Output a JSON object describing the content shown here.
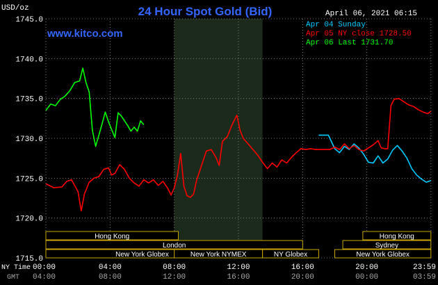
{
  "title": "24 Hour Spot Gold (Bid)",
  "unit_label": "USD/oz",
  "site": "www.kitco.com",
  "timestamp": "April 06, 2021 06:15",
  "legend": [
    {
      "text": "Apr 04 Sunday",
      "color": "#00ccff"
    },
    {
      "text": "Apr 05 NY close 1728.50",
      "color": "#ff0000"
    },
    {
      "text": "Apr 06 Last 1731.70",
      "color": "#00ff00"
    }
  ],
  "time_labels": {
    "ny_caption": "NY Time",
    "gmt_caption": "GMT",
    "ny": [
      "00:00",
      "04:00",
      "08:00",
      "12:00",
      "16:00",
      "20:00",
      "23:59"
    ],
    "gmt": [
      "04:00",
      "08:00",
      "12:00",
      "16:00",
      "20:00",
      "00:00",
      "03:59"
    ]
  },
  "markets": [
    {
      "name": "Hong Kong",
      "start": 0.0,
      "end": 8.25,
      "row": 0
    },
    {
      "name": "London",
      "start": 0.0,
      "end": 16.0,
      "row": 1
    },
    {
      "name": "New York Globex",
      "start": 0.0,
      "end": 12.0,
      "row": 2
    },
    {
      "name": "New York NYMEX",
      "start": 8.0,
      "end": 13.5,
      "row": 2
    },
    {
      "name": "NY Globex",
      "start": 13.5,
      "end": 17.0,
      "row": 2
    },
    {
      "name": "Hong Kong",
      "start": 19.75,
      "end": 23.99,
      "row": 0
    },
    {
      "name": "Sydney",
      "start": 18.5,
      "end": 23.99,
      "row": 1
    },
    {
      "name": "New York Globex",
      "start": 18.0,
      "end": 23.99,
      "row": 2
    }
  ],
  "colors": {
    "background": "#000000",
    "title": "#3366ff",
    "site": "#3366ff",
    "text": "#ffffff",
    "grid": "#7f7f7f",
    "nymex_shade": "#1b2a1b",
    "market_bar": "#000000",
    "market_border": "#c8a800",
    "market_text": "#ffffff",
    "time_gmt": "#a8a8a8"
  },
  "chart_data": {
    "type": "line",
    "title": "24 Hour Spot Gold (Bid)",
    "xlabel": "",
    "ylabel": "USD/oz",
    "xlim": [
      0,
      24
    ],
    "ylim": [
      1715,
      1745
    ],
    "yticks": [
      1715,
      1720,
      1725,
      1730,
      1735,
      1740,
      1745
    ],
    "ytick_labels": [
      "1715.0",
      "1720.0",
      "1725.0",
      "1730.0",
      "1735.0",
      "1740.0",
      "1745.0"
    ],
    "xticks": [
      0,
      4,
      8,
      12,
      16,
      20,
      23.99
    ],
    "grid": true,
    "legend_position": "top-right",
    "x_unit": "hours after 00:00 NY time",
    "shaded_region": [
      8.0,
      13.5
    ],
    "series": [
      {
        "name": "Apr 04 Sunday",
        "color": "#00ccff",
        "x": [
          17.0,
          17.6,
          18.0,
          18.3,
          18.6,
          18.9,
          19.2,
          19.5,
          19.8,
          20.1,
          20.4,
          20.7,
          21.0,
          21.3,
          21.6,
          21.9,
          22.2,
          22.5,
          22.8,
          23.1,
          23.4,
          23.7,
          23.99
        ],
        "y": [
          1730.4,
          1730.4,
          1728.7,
          1728.2,
          1729.0,
          1728.6,
          1729.3,
          1728.8,
          1728.0,
          1727.0,
          1726.9,
          1727.8,
          1726.9,
          1727.4,
          1728.5,
          1729.1,
          1728.4,
          1727.5,
          1726.2,
          1725.4,
          1724.9,
          1724.5,
          1724.7
        ]
      },
      {
        "name": "Apr 05 NY close 1728.50",
        "color": "#ff0000",
        "x": [
          0.0,
          0.5,
          1.0,
          1.3,
          1.6,
          2.0,
          2.2,
          2.4,
          2.7,
          3.0,
          3.3,
          3.6,
          3.9,
          4.1,
          4.3,
          4.6,
          4.9,
          5.2,
          5.5,
          5.8,
          6.1,
          6.4,
          6.7,
          7.0,
          7.3,
          7.6,
          7.8,
          8.0,
          8.2,
          8.4,
          8.6,
          8.8,
          9.0,
          9.2,
          9.4,
          9.7,
          10.0,
          10.3,
          10.6,
          10.8,
          11.0,
          11.3,
          11.6,
          11.9,
          12.1,
          12.3,
          12.6,
          12.9,
          13.2,
          13.5,
          13.8,
          14.1,
          14.4,
          14.7,
          15.0,
          15.3,
          15.6,
          15.9,
          16.2,
          16.5,
          16.8,
          17.1,
          17.4,
          17.7,
          18.0,
          18.3,
          18.6,
          18.9,
          19.2,
          19.5,
          19.8,
          20.1,
          20.4,
          20.7,
          20.9,
          21.1,
          21.3,
          21.5,
          21.7,
          22.0,
          22.3,
          22.6,
          22.9,
          23.2,
          23.5,
          23.8,
          23.99
        ],
        "y": [
          1724.3,
          1723.8,
          1723.9,
          1724.6,
          1724.8,
          1723.3,
          1720.9,
          1723.0,
          1724.5,
          1725.0,
          1725.2,
          1726.1,
          1726.3,
          1725.4,
          1725.6,
          1726.7,
          1726.1,
          1725.0,
          1724.4,
          1724.0,
          1724.8,
          1724.4,
          1724.8,
          1724.1,
          1724.6,
          1723.7,
          1722.9,
          1723.8,
          1725.4,
          1728.1,
          1724.0,
          1722.8,
          1722.6,
          1723.0,
          1724.8,
          1726.6,
          1728.4,
          1728.6,
          1727.6,
          1726.6,
          1729.6,
          1730.2,
          1731.7,
          1732.9,
          1731.0,
          1730.0,
          1729.3,
          1728.6,
          1727.9,
          1727.0,
          1726.2,
          1726.9,
          1726.4,
          1727.3,
          1726.9,
          1727.6,
          1728.2,
          1728.7,
          1728.6,
          1728.7,
          1728.6,
          1728.6,
          1728.6,
          1728.6,
          1728.9,
          1728.6,
          1729.3,
          1728.7,
          1729.1,
          1728.6,
          1728.4,
          1728.8,
          1729.2,
          1729.7,
          1728.8,
          1728.7,
          1728.7,
          1734.1,
          1734.9,
          1735.0,
          1734.6,
          1734.2,
          1734.0,
          1733.6,
          1733.3,
          1733.1,
          1733.4
        ]
      },
      {
        "name": "Apr 06 Last 1731.70",
        "color": "#00ff00",
        "x": [
          0.0,
          0.3,
          0.6,
          0.9,
          1.2,
          1.5,
          1.8,
          2.1,
          2.3,
          2.5,
          2.7,
          2.9,
          3.1,
          3.3,
          3.5,
          3.7,
          3.9,
          4.1,
          4.3,
          4.5,
          4.7,
          4.9,
          5.1,
          5.3,
          5.5,
          5.7,
          5.9,
          6.1
        ],
        "y": [
          1733.5,
          1734.3,
          1734.1,
          1734.9,
          1735.3,
          1736.0,
          1737.0,
          1737.2,
          1738.8,
          1737.0,
          1735.8,
          1731.0,
          1729.0,
          1730.4,
          1731.8,
          1733.3,
          1732.1,
          1731.1,
          1730.1,
          1733.2,
          1732.8,
          1732.2,
          1731.6,
          1730.9,
          1731.4,
          1730.9,
          1732.2,
          1731.7
        ]
      }
    ]
  }
}
